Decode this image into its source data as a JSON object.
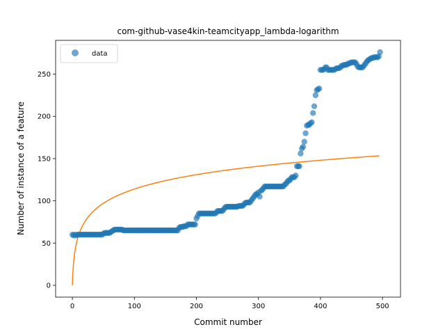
{
  "chart_data": {
    "type": "scatter",
    "title": "com-github-vase4kin-teamcityapp_lambda-logarithm",
    "xlabel": "Commit number",
    "ylabel": "Number of instance of a feature",
    "xlim": [
      -27,
      529
    ],
    "ylim": [
      -14,
      290
    ],
    "xticks": [
      0,
      100,
      200,
      300,
      400,
      500
    ],
    "yticks": [
      0,
      50,
      100,
      150,
      200,
      250
    ],
    "grid": false,
    "legend": {
      "placement": "upper left",
      "entries": [
        "data"
      ]
    },
    "series": [
      {
        "name": "data",
        "kind": "scatter",
        "color": "#1f77b4",
        "alpha": 0.65,
        "points": [
          [
            0,
            60
          ],
          [
            2,
            59
          ],
          [
            4,
            60
          ],
          [
            6,
            59
          ],
          [
            8,
            60
          ],
          [
            10,
            60
          ],
          [
            12,
            60
          ],
          [
            14,
            60
          ],
          [
            16,
            60
          ],
          [
            18,
            60
          ],
          [
            20,
            60
          ],
          [
            22,
            60
          ],
          [
            24,
            60
          ],
          [
            26,
            60
          ],
          [
            28,
            60
          ],
          [
            30,
            60
          ],
          [
            32,
            60
          ],
          [
            34,
            60
          ],
          [
            36,
            60
          ],
          [
            38,
            60
          ],
          [
            40,
            60
          ],
          [
            42,
            60
          ],
          [
            44,
            60
          ],
          [
            46,
            60
          ],
          [
            48,
            60
          ],
          [
            50,
            61
          ],
          [
            52,
            62
          ],
          [
            54,
            62
          ],
          [
            56,
            62
          ],
          [
            58,
            62
          ],
          [
            60,
            62
          ],
          [
            62,
            63
          ],
          [
            64,
            64
          ],
          [
            66,
            65
          ],
          [
            68,
            66
          ],
          [
            70,
            66
          ],
          [
            72,
            66
          ],
          [
            74,
            66
          ],
          [
            76,
            66
          ],
          [
            78,
            66
          ],
          [
            80,
            66
          ],
          [
            82,
            65
          ],
          [
            84,
            65
          ],
          [
            86,
            65
          ],
          [
            88,
            65
          ],
          [
            90,
            65
          ],
          [
            92,
            65
          ],
          [
            94,
            65
          ],
          [
            96,
            65
          ],
          [
            98,
            65
          ],
          [
            100,
            65
          ],
          [
            102,
            65
          ],
          [
            104,
            65
          ],
          [
            106,
            65
          ],
          [
            108,
            65
          ],
          [
            110,
            65
          ],
          [
            112,
            65
          ],
          [
            114,
            65
          ],
          [
            116,
            65
          ],
          [
            118,
            65
          ],
          [
            120,
            65
          ],
          [
            122,
            65
          ],
          [
            124,
            65
          ],
          [
            126,
            65
          ],
          [
            128,
            65
          ],
          [
            130,
            65
          ],
          [
            132,
            65
          ],
          [
            134,
            65
          ],
          [
            136,
            65
          ],
          [
            138,
            65
          ],
          [
            140,
            65
          ],
          [
            142,
            65
          ],
          [
            144,
            65
          ],
          [
            146,
            65
          ],
          [
            148,
            65
          ],
          [
            150,
            65
          ],
          [
            152,
            65
          ],
          [
            154,
            65
          ],
          [
            156,
            65
          ],
          [
            158,
            65
          ],
          [
            160,
            65
          ],
          [
            162,
            65
          ],
          [
            164,
            65
          ],
          [
            166,
            65
          ],
          [
            168,
            65
          ],
          [
            170,
            65
          ],
          [
            172,
            68
          ],
          [
            174,
            69
          ],
          [
            176,
            69
          ],
          [
            178,
            69
          ],
          [
            180,
            70
          ],
          [
            182,
            70
          ],
          [
            184,
            70
          ],
          [
            186,
            72
          ],
          [
            188,
            72
          ],
          [
            190,
            72
          ],
          [
            192,
            72
          ],
          [
            194,
            72
          ],
          [
            196,
            72
          ],
          [
            198,
            72
          ],
          [
            200,
            79
          ],
          [
            202,
            82
          ],
          [
            204,
            85
          ],
          [
            206,
            85
          ],
          [
            208,
            85
          ],
          [
            210,
            85
          ],
          [
            212,
            85
          ],
          [
            214,
            85
          ],
          [
            216,
            85
          ],
          [
            218,
            85
          ],
          [
            220,
            85
          ],
          [
            222,
            85
          ],
          [
            224,
            85
          ],
          [
            226,
            85
          ],
          [
            228,
            85
          ],
          [
            230,
            85
          ],
          [
            232,
            86
          ],
          [
            234,
            88
          ],
          [
            236,
            88
          ],
          [
            238,
            88
          ],
          [
            240,
            88
          ],
          [
            242,
            88
          ],
          [
            244,
            90
          ],
          [
            246,
            92
          ],
          [
            248,
            93
          ],
          [
            250,
            93
          ],
          [
            252,
            93
          ],
          [
            254,
            93
          ],
          [
            256,
            93
          ],
          [
            258,
            93
          ],
          [
            260,
            93
          ],
          [
            262,
            93
          ],
          [
            264,
            93
          ],
          [
            266,
            93
          ],
          [
            268,
            94
          ],
          [
            270,
            94
          ],
          [
            272,
            94
          ],
          [
            274,
            94
          ],
          [
            276,
            95
          ],
          [
            278,
            97
          ],
          [
            280,
            98
          ],
          [
            282,
            98
          ],
          [
            284,
            98
          ],
          [
            286,
            98
          ],
          [
            288,
            100
          ],
          [
            290,
            102
          ],
          [
            292,
            104
          ],
          [
            294,
            106
          ],
          [
            296,
            108
          ],
          [
            298,
            108
          ],
          [
            300,
            110
          ],
          [
            302,
            105
          ],
          [
            304,
            112
          ],
          [
            306,
            113
          ],
          [
            308,
            115
          ],
          [
            310,
            117
          ],
          [
            312,
            117
          ],
          [
            314,
            117
          ],
          [
            316,
            117
          ],
          [
            318,
            117
          ],
          [
            320,
            117
          ],
          [
            322,
            117
          ],
          [
            324,
            117
          ],
          [
            326,
            117
          ],
          [
            328,
            117
          ],
          [
            330,
            117
          ],
          [
            332,
            117
          ],
          [
            334,
            117
          ],
          [
            336,
            117
          ],
          [
            338,
            117
          ],
          [
            340,
            117
          ],
          [
            342,
            119
          ],
          [
            344,
            120
          ],
          [
            346,
            122
          ],
          [
            348,
            124
          ],
          [
            350,
            124
          ],
          [
            352,
            126
          ],
          [
            354,
            128
          ],
          [
            356,
            128
          ],
          [
            358,
            128
          ],
          [
            360,
            130
          ],
          [
            362,
            141
          ],
          [
            364,
            141
          ],
          [
            366,
            141
          ],
          [
            368,
            156
          ],
          [
            370,
            162
          ],
          [
            372,
            164
          ],
          [
            374,
            170
          ],
          [
            376,
            180
          ],
          [
            378,
            189
          ],
          [
            380,
            190
          ],
          [
            382,
            190
          ],
          [
            384,
            192
          ],
          [
            386,
            193
          ],
          [
            388,
            204
          ],
          [
            390,
            212
          ],
          [
            392,
            225
          ],
          [
            394,
            231
          ],
          [
            396,
            232
          ],
          [
            398,
            233
          ],
          [
            400,
            255
          ],
          [
            402,
            255
          ],
          [
            404,
            255
          ],
          [
            406,
            256
          ],
          [
            408,
            258
          ],
          [
            410,
            258
          ],
          [
            412,
            255
          ],
          [
            414,
            255
          ],
          [
            416,
            255
          ],
          [
            418,
            255
          ],
          [
            420,
            255
          ],
          [
            422,
            255
          ],
          [
            424,
            256
          ],
          [
            426,
            257
          ],
          [
            428,
            257
          ],
          [
            430,
            257
          ],
          [
            432,
            258
          ],
          [
            434,
            260
          ],
          [
            436,
            260
          ],
          [
            438,
            261
          ],
          [
            440,
            261
          ],
          [
            442,
            261
          ],
          [
            444,
            262
          ],
          [
            446,
            263
          ],
          [
            448,
            263
          ],
          [
            450,
            264
          ],
          [
            452,
            264
          ],
          [
            454,
            264
          ],
          [
            456,
            264
          ],
          [
            458,
            262
          ],
          [
            460,
            259
          ],
          [
            462,
            258
          ],
          [
            464,
            258
          ],
          [
            466,
            258
          ],
          [
            468,
            258
          ],
          [
            470,
            260
          ],
          [
            472,
            262
          ],
          [
            474,
            264
          ],
          [
            476,
            266
          ],
          [
            478,
            267
          ],
          [
            480,
            268
          ],
          [
            482,
            269
          ],
          [
            484,
            269
          ],
          [
            486,
            270
          ],
          [
            488,
            270
          ],
          [
            490,
            270
          ],
          [
            492,
            270
          ],
          [
            494,
            271
          ],
          [
            496,
            276
          ]
        ]
      },
      {
        "name": "",
        "kind": "line",
        "color": "#ff7f0e",
        "model": {
          "form": "a*ln(x+1)",
          "a": 24.7,
          "x_range": [
            0,
            495
          ]
        }
      }
    ]
  }
}
